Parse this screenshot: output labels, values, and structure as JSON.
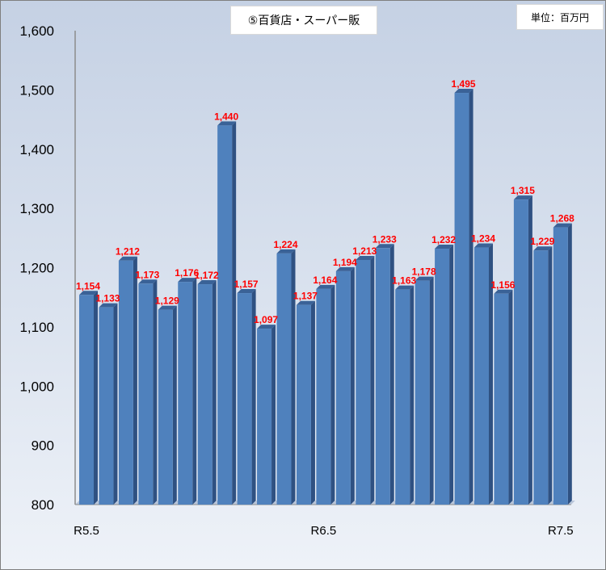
{
  "chart_data": {
    "type": "bar",
    "title": "⑤百貨店・スーパー販",
    "unit_label": "単位：百万円",
    "xlabel": "",
    "ylabel": "",
    "ylim": [
      800,
      1600
    ],
    "yticks": [
      800,
      900,
      1000,
      1100,
      1200,
      1300,
      1400,
      1500,
      1600
    ],
    "x_tick_labels": [
      {
        "index": 0,
        "label": "R5.5"
      },
      {
        "index": 12,
        "label": "R6.5"
      },
      {
        "index": 24,
        "label": "R7.5"
      }
    ],
    "grid": false,
    "legend": "none",
    "bar_color": "#4f81bd",
    "label_color": "#ff0000",
    "values": [
      1154,
      1133,
      1212,
      1173,
      1129,
      1176,
      1172,
      1440,
      1157,
      1097,
      1224,
      1137,
      1164,
      1194,
      1213,
      1233,
      1163,
      1178,
      1232,
      1495,
      1234,
      1156,
      1315,
      1229,
      1268
    ],
    "value_labels": [
      "1,154",
      "1,133",
      "1,212",
      "1,173",
      "1,129",
      "1,176",
      "1,172",
      "1,440",
      "1,157",
      "1,097",
      "1,224",
      "1,137",
      "1,164",
      "1,194",
      "1,213",
      "1,233",
      "1,163",
      "1,178",
      "1,232",
      "1,495",
      "1,234",
      "1,156",
      "1,315",
      "1,229",
      "1,268"
    ]
  }
}
